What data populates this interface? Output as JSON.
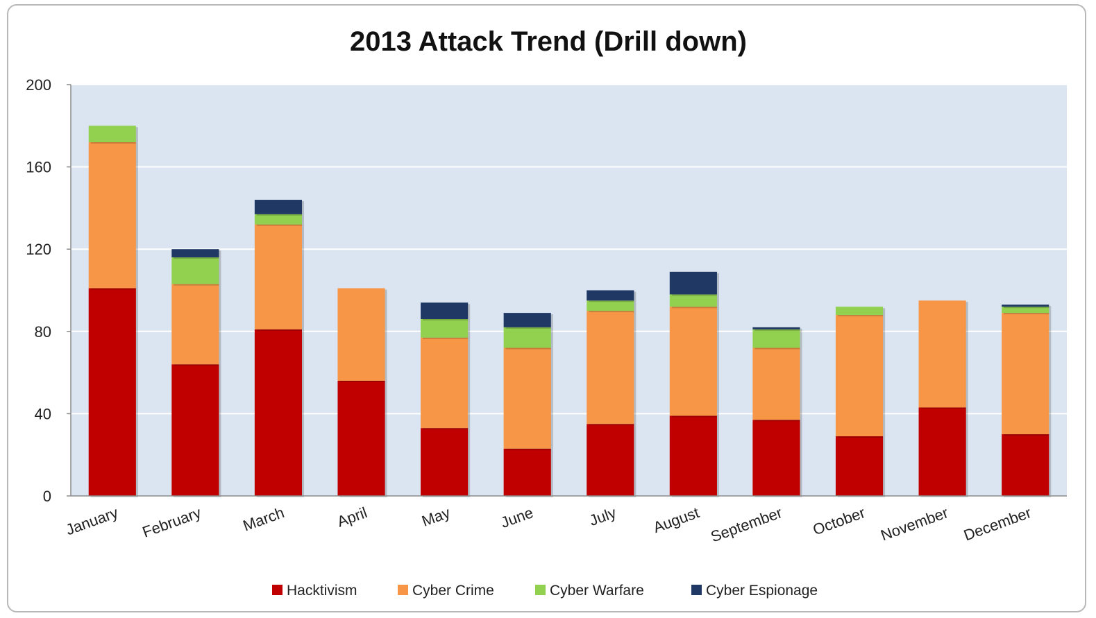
{
  "chart_data": {
    "type": "bar",
    "stacked": true,
    "title": "2013 Attack Trend (Drill down)",
    "xlabel": "",
    "ylabel": "",
    "ylim": [
      0,
      200
    ],
    "yticks": [
      0,
      40,
      80,
      120,
      160,
      200
    ],
    "grid": true,
    "legend_position": "bottom",
    "categories": [
      "January",
      "February",
      "March",
      "April",
      "May",
      "June",
      "July",
      "August",
      "September",
      "October",
      "November",
      "December"
    ],
    "series": [
      {
        "name": "Hacktivism",
        "color": "#c00000",
        "values": [
          101,
          64,
          81,
          56,
          33,
          23,
          35,
          39,
          37,
          29,
          43,
          30
        ]
      },
      {
        "name": "Cyber Crime",
        "color": "#f79646",
        "values": [
          71,
          39,
          51,
          45,
          44,
          49,
          55,
          53,
          35,
          59,
          52,
          59
        ]
      },
      {
        "name": "Cyber Warfare",
        "color": "#92d050",
        "values": [
          8,
          13,
          5,
          0,
          9,
          10,
          5,
          6,
          9,
          4,
          0,
          3
        ]
      },
      {
        "name": "Cyber Espionage",
        "color": "#1f3864",
        "values": [
          0,
          4,
          7,
          0,
          8,
          7,
          5,
          11,
          1,
          0,
          0,
          1
        ]
      }
    ]
  }
}
